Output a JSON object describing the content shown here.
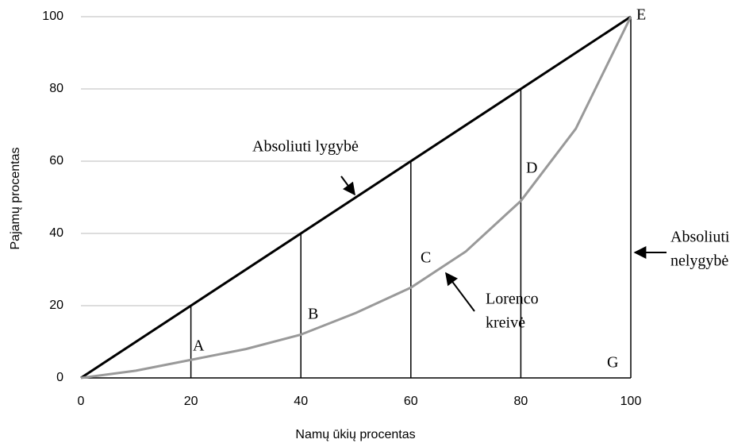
{
  "chart_data": {
    "type": "line",
    "x_label": "Namų ūkių procentas",
    "y_label": "Pajamų procentas",
    "xlim": [
      0,
      100
    ],
    "ylim": [
      0,
      100
    ],
    "xticks": [
      0,
      20,
      40,
      60,
      80,
      100
    ],
    "yticks": [
      0,
      20,
      40,
      60,
      80,
      100
    ],
    "series": [
      {
        "color": "#000000",
        "x": [
          0,
          100
        ],
        "values": [
          0,
          100
        ]
      },
      {
        "color": "#999999",
        "x": [
          0,
          10,
          20,
          30,
          40,
          50,
          60,
          70,
          80,
          90,
          100
        ],
        "values": [
          0,
          2,
          5,
          8,
          12,
          18,
          25,
          35,
          49,
          69,
          100
        ]
      }
    ],
    "annotations": [
      {
        "lines": [
          "A"
        ]
      },
      {
        "lines": [
          "B"
        ]
      },
      {
        "lines": [
          "C"
        ]
      },
      {
        "lines": [
          "D"
        ]
      },
      {
        "lines": [
          "E"
        ]
      },
      {
        "lines": [
          "G"
        ]
      },
      {
        "lines": [
          "Absoliuti lygybė"
        ]
      },
      {
        "lines": [
          "Lorenco",
          "kreivė"
        ]
      },
      {
        "lines": [
          "Absoliuti",
          "nelygybė"
        ]
      }
    ]
  }
}
